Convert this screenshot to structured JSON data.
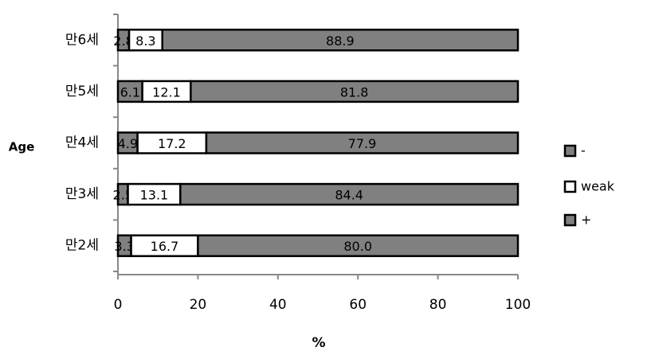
{
  "chart_data": {
    "type": "stacked-bar-horizontal",
    "x_label": "%",
    "y_label": "Age",
    "categories": [
      "만6세",
      "만5세",
      "만4세",
      "만3세",
      "만2세"
    ],
    "series": [
      {
        "name": "-",
        "color": "#808080",
        "values": [
          2.8,
          6.1,
          4.9,
          2.5,
          3.3
        ]
      },
      {
        "name": "weak",
        "color": "#ffffff",
        "values": [
          8.3,
          12.1,
          17.2,
          13.1,
          16.7
        ]
      },
      {
        "name": "+",
        "color": "#808080",
        "values": [
          88.9,
          81.8,
          77.9,
          84.4,
          80.0
        ],
        "value_labels": [
          "88.9",
          "81.8",
          "77.9",
          "84.4",
          "80.0"
        ]
      }
    ],
    "xlim": [
      0,
      100
    ],
    "xticks": [
      0,
      20,
      40,
      60,
      80,
      100
    ]
  }
}
